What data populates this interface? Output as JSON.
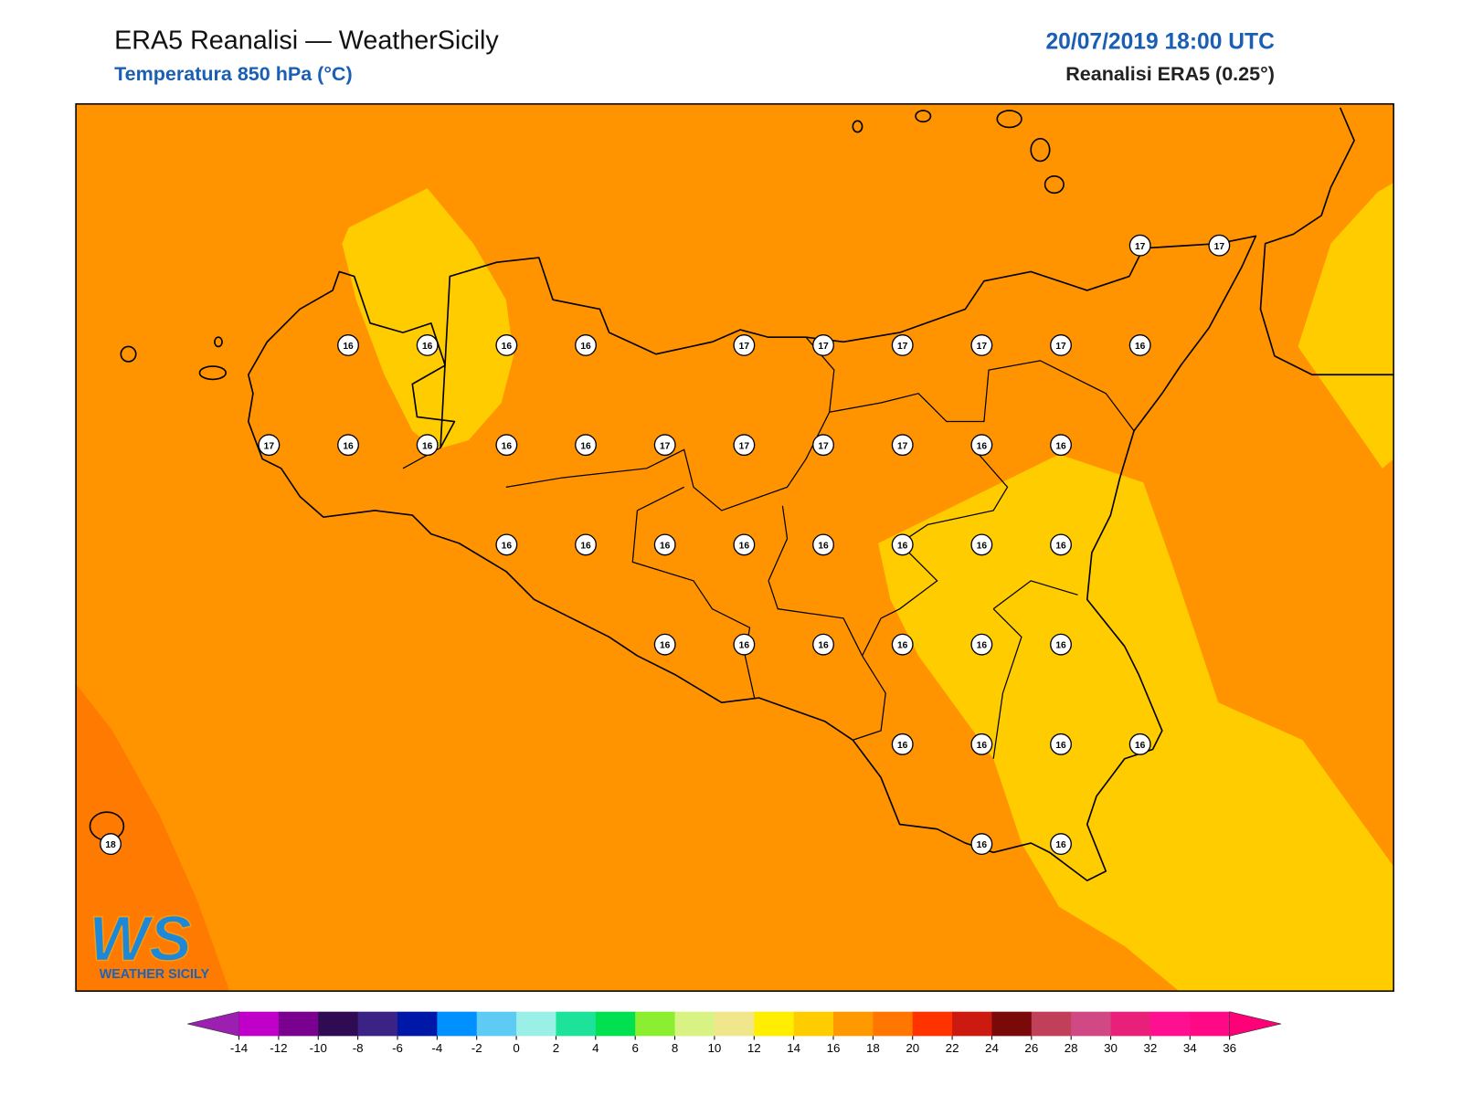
{
  "header": {
    "title": "ERA5 Reanalisi — WeatherSicily",
    "subtitle": "Temperatura 850 hPa (°C)",
    "datetime": "20/07/2019 18:00 UTC",
    "source": "Reanalisi ERA5 (0.25°)"
  },
  "stations": {
    "rows": [
      [
        null,
        null,
        null,
        null,
        null,
        null,
        null,
        null,
        null,
        null,
        null,
        null,
        null,
        17,
        17
      ],
      [
        null,
        null,
        null,
        16,
        16,
        16,
        16,
        null,
        17,
        17,
        17,
        17,
        17,
        16,
        null
      ],
      [
        null,
        null,
        17,
        16,
        16,
        16,
        16,
        17,
        17,
        17,
        17,
        16,
        16,
        null,
        null
      ],
      [
        null,
        null,
        null,
        null,
        null,
        16,
        16,
        16,
        16,
        16,
        16,
        16,
        16,
        null,
        null
      ],
      [
        null,
        null,
        null,
        null,
        null,
        null,
        null,
        16,
        16,
        16,
        16,
        16,
        16,
        null,
        null
      ],
      [
        null,
        null,
        null,
        null,
        null,
        null,
        null,
        null,
        null,
        null,
        16,
        16,
        16,
        16,
        null
      ],
      [
        18,
        null,
        null,
        null,
        null,
        null,
        null,
        null,
        null,
        null,
        null,
        16,
        16,
        null,
        null
      ]
    ]
  },
  "colorbar": {
    "ticks": [
      -14,
      -12,
      -10,
      -8,
      -6,
      -4,
      -2,
      0,
      2,
      4,
      6,
      8,
      10,
      12,
      14,
      16,
      18,
      20,
      22,
      24,
      26,
      28,
      30,
      32,
      34,
      36
    ],
    "extend": "both",
    "colors": [
      "#9b1fb0",
      "#c000c8",
      "#7a0090",
      "#2e0b52",
      "#3b2385",
      "#0018a8",
      "#0090ff",
      "#5ecbf5",
      "#9af0e6",
      "#1de29a",
      "#00e050",
      "#8cee30",
      "#d9f284",
      "#f0e68c",
      "#ffee00",
      "#ffcc00",
      "#ff9900",
      "#ff7700",
      "#ff3300",
      "#cc1a10",
      "#7a0a0a",
      "#c0405a",
      "#d04884",
      "#e8207a",
      "#ff1090",
      "#ff0a84",
      "#ff0078"
    ]
  },
  "logo": {
    "mark": "WS",
    "text": "WEATHER SICILY"
  }
}
